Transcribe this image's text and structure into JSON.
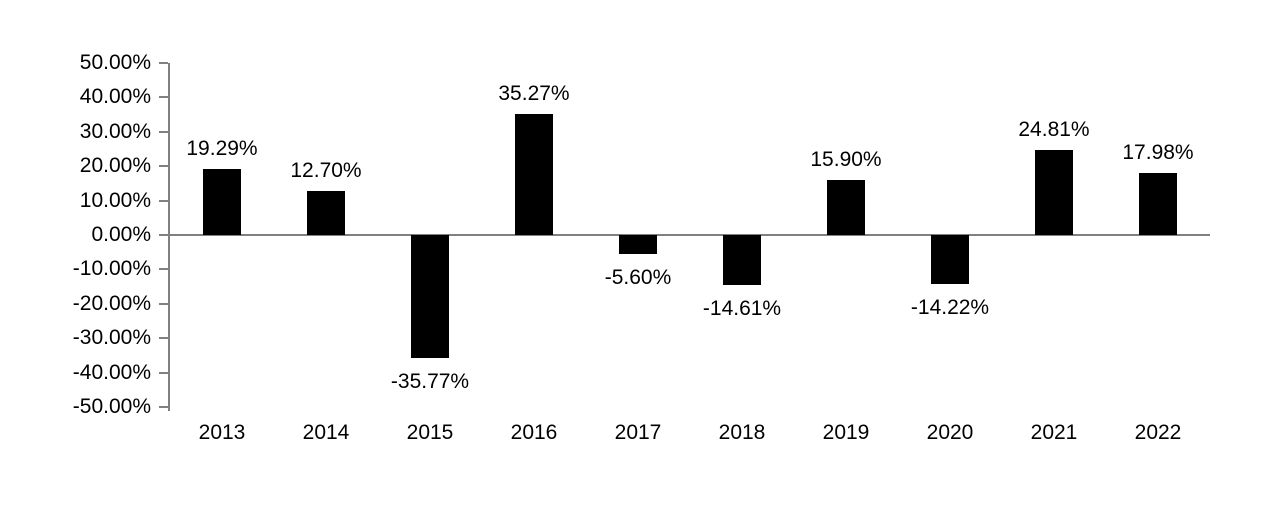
{
  "chart_data": {
    "type": "bar",
    "title": "",
    "xlabel": "",
    "ylabel": "",
    "categories": [
      "2013",
      "2014",
      "2015",
      "2016",
      "2017",
      "2018",
      "2019",
      "2020",
      "2021",
      "2022"
    ],
    "values": [
      19.29,
      12.7,
      -35.77,
      35.27,
      -5.6,
      -14.61,
      15.9,
      -14.22,
      24.81,
      17.98
    ],
    "value_labels": [
      "19.29%",
      "12.70%",
      "-35.77%",
      "35.27%",
      "-5.60%",
      "-14.61%",
      "15.90%",
      "-14.22%",
      "24.81%",
      "17.98%"
    ],
    "ylim": [
      -50,
      50
    ],
    "ytick_step": 10,
    "ytick_labels": [
      "50.00%",
      "40.00%",
      "30.00%",
      "20.00%",
      "10.00%",
      "0.00%",
      "-10.00%",
      "-20.00%",
      "-30.00%",
      "-40.00%",
      "-50.00%"
    ],
    "grid": false,
    "legend": null,
    "colors": {
      "bar": "#000000",
      "axis": "#808080",
      "text": "#000000",
      "background": "#ffffff"
    }
  }
}
